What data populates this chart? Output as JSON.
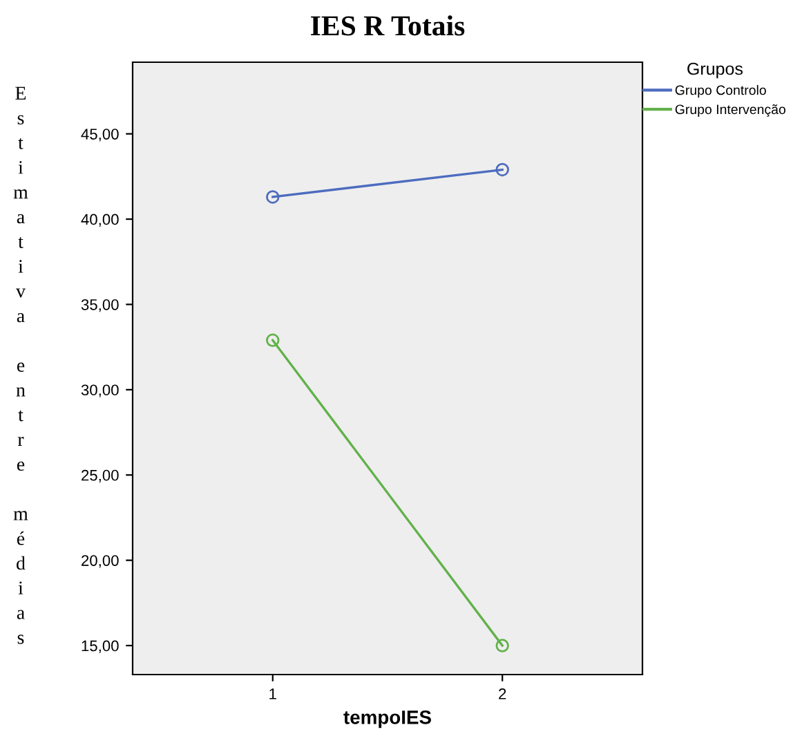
{
  "chart_data": {
    "type": "line",
    "title": "IES R Totais",
    "xlabel": "tempoIES",
    "ylabel": "Estimativa entre médias",
    "legend_title": "Grupos",
    "legend": "top right",
    "marker": "circle",
    "line_style": "solid",
    "grid": false,
    "x": [
      1,
      2
    ],
    "xlim": [
      0.39,
      2.61
    ],
    "xticks": [
      1,
      2
    ],
    "ylim": [
      13.3,
      49.2
    ],
    "yticks": [
      {
        "value": 15,
        "label": "15,00"
      },
      {
        "value": 20,
        "label": "20,00"
      },
      {
        "value": 25,
        "label": "25,00"
      },
      {
        "value": 30,
        "label": "30,00"
      },
      {
        "value": 35,
        "label": "35,00"
      },
      {
        "value": 40,
        "label": "40,00"
      },
      {
        "value": 45,
        "label": "45,00"
      }
    ],
    "series": [
      {
        "name": "Grupo Controlo",
        "color": "#4c6cbf",
        "values": [
          41.3,
          42.9
        ]
      },
      {
        "name": "Grupo Intervenção",
        "color": "#63b14b",
        "values": [
          32.9,
          15.0
        ]
      }
    ]
  }
}
